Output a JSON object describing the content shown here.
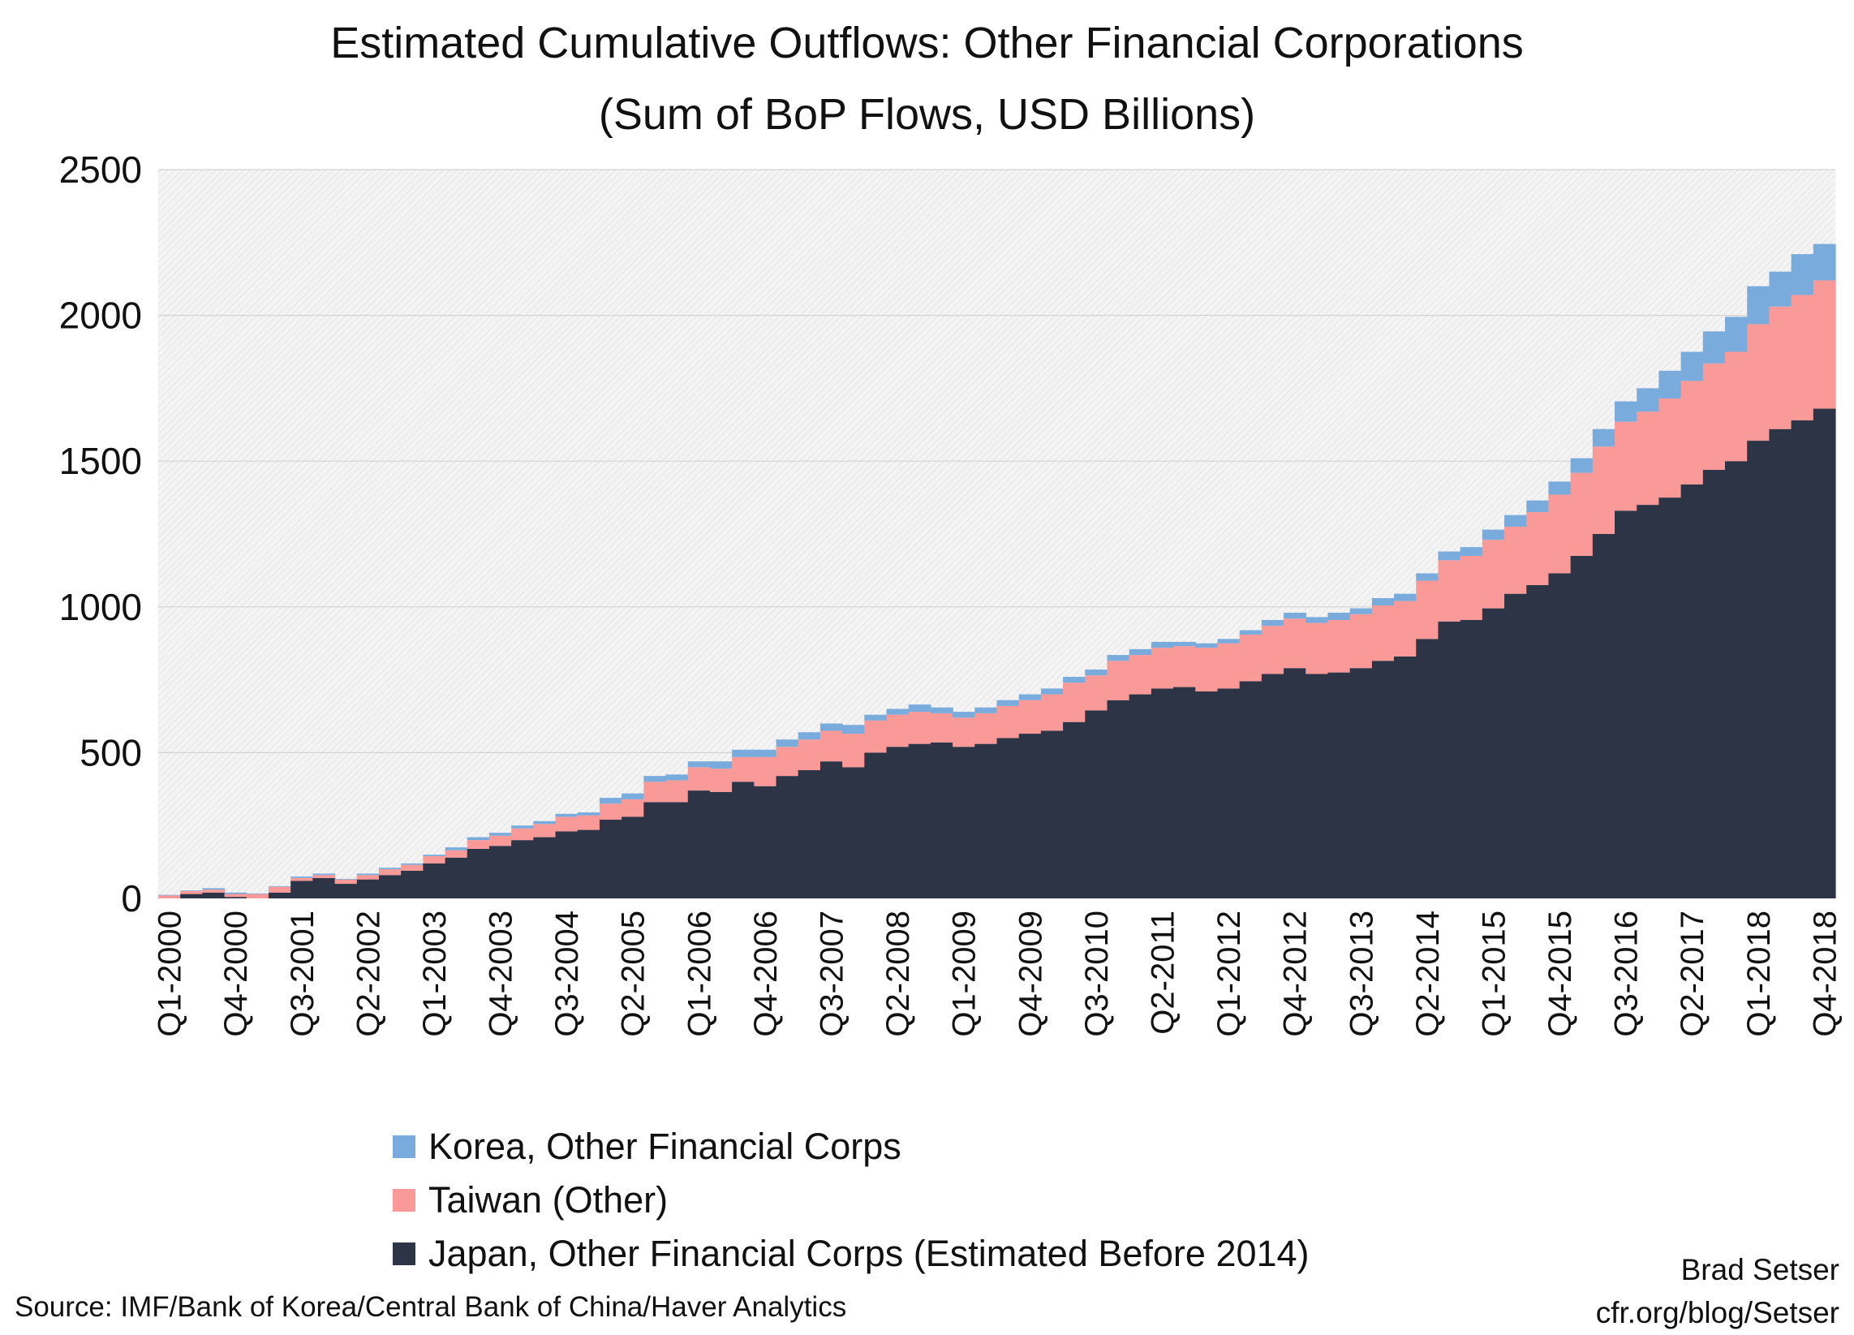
{
  "title_line1": "Estimated Cumulative Outflows: Other Financial Corporations",
  "title_line2": "(Sum of BoP Flows, USD Billions)",
  "source": "Source: IMF/Bank of Korea/Central Bank of China/Haver Analytics",
  "credit_name": "Brad Setser",
  "credit_url": "cfr.org/blog/Setser",
  "colors": {
    "japan": "#2c3446",
    "taiwan": "#f99a98",
    "korea": "#7aabdd",
    "plot_bg": "#f2f2f2",
    "grid": "#d3d3d3"
  },
  "chart_data": {
    "type": "area",
    "stacked": true,
    "ylim": [
      0,
      2500
    ],
    "yticks": [
      0,
      500,
      1000,
      1500,
      2000,
      2500
    ],
    "grid": true,
    "legend_position": "bottom",
    "x_labels_shown": [
      "Q1-2000",
      "Q4-2000",
      "Q3-2001",
      "Q2-2002",
      "Q1-2003",
      "Q4-2003",
      "Q3-2004",
      "Q2-2005",
      "Q1-2006",
      "Q4-2006",
      "Q3-2007",
      "Q2-2008",
      "Q1-2009",
      "Q4-2009",
      "Q3-2010",
      "Q2-2011",
      "Q1-2012",
      "Q4-2012",
      "Q3-2013",
      "Q2-2014",
      "Q1-2015",
      "Q4-2015",
      "Q3-2016",
      "Q2-2017",
      "Q1-2018",
      "Q4-2018"
    ],
    "x": [
      "Q1-2000",
      "Q2-2000",
      "Q3-2000",
      "Q4-2000",
      "Q1-2001",
      "Q2-2001",
      "Q3-2001",
      "Q4-2001",
      "Q1-2002",
      "Q2-2002",
      "Q3-2002",
      "Q4-2002",
      "Q1-2003",
      "Q2-2003",
      "Q3-2003",
      "Q4-2003",
      "Q1-2004",
      "Q2-2004",
      "Q3-2004",
      "Q4-2004",
      "Q1-2005",
      "Q2-2005",
      "Q3-2005",
      "Q4-2005",
      "Q1-2006",
      "Q2-2006",
      "Q3-2006",
      "Q4-2006",
      "Q1-2007",
      "Q2-2007",
      "Q3-2007",
      "Q4-2007",
      "Q1-2008",
      "Q2-2008",
      "Q3-2008",
      "Q4-2008",
      "Q1-2009",
      "Q2-2009",
      "Q3-2009",
      "Q4-2009",
      "Q1-2010",
      "Q2-2010",
      "Q3-2010",
      "Q4-2010",
      "Q1-2011",
      "Q2-2011",
      "Q3-2011",
      "Q4-2011",
      "Q1-2012",
      "Q2-2012",
      "Q3-2012",
      "Q4-2012",
      "Q1-2013",
      "Q2-2013",
      "Q3-2013",
      "Q4-2013",
      "Q1-2014",
      "Q2-2014",
      "Q3-2014",
      "Q4-2014",
      "Q1-2015",
      "Q2-2015",
      "Q3-2015",
      "Q4-2015",
      "Q1-2016",
      "Q2-2016",
      "Q3-2016",
      "Q4-2016",
      "Q1-2017",
      "Q2-2017",
      "Q3-2017",
      "Q4-2017",
      "Q1-2018",
      "Q2-2018",
      "Q3-2018",
      "Q4-2018"
    ],
    "series": [
      {
        "name": "Japan, Other Financial Corps (Estimated Before 2014)",
        "color": "#2c3446",
        "values": [
          0,
          15,
          20,
          5,
          0,
          20,
          60,
          70,
          50,
          65,
          80,
          95,
          120,
          140,
          170,
          180,
          200,
          210,
          230,
          235,
          270,
          280,
          330,
          330,
          370,
          365,
          400,
          385,
          420,
          440,
          470,
          450,
          500,
          520,
          530,
          535,
          520,
          530,
          550,
          565,
          575,
          605,
          645,
          680,
          700,
          720,
          725,
          710,
          720,
          745,
          770,
          790,
          770,
          775,
          790,
          815,
          830,
          890,
          950,
          955,
          995,
          1045,
          1075,
          1115,
          1175,
          1250,
          1330,
          1350,
          1375,
          1420,
          1470,
          1500,
          1570,
          1610,
          1640,
          1680
        ]
      },
      {
        "name": "Taiwan (Other)",
        "color": "#f99a98",
        "values": [
          10,
          10,
          10,
          10,
          15,
          20,
          10,
          10,
          15,
          15,
          20,
          20,
          25,
          25,
          30,
          35,
          40,
          45,
          50,
          50,
          55,
          60,
          70,
          75,
          80,
          80,
          85,
          100,
          100,
          105,
          105,
          115,
          110,
          110,
          110,
          100,
          100,
          105,
          110,
          115,
          125,
          135,
          120,
          135,
          135,
          140,
          140,
          150,
          155,
          160,
          165,
          170,
          175,
          180,
          185,
          190,
          190,
          200,
          210,
          220,
          235,
          230,
          250,
          270,
          285,
          300,
          305,
          320,
          340,
          355,
          365,
          375,
          400,
          420,
          430,
          440
        ]
      },
      {
        "name": "Korea, Other Financial Corps",
        "color": "#7aabdd",
        "values": [
          2,
          2,
          5,
          5,
          2,
          2,
          5,
          5,
          2,
          5,
          5,
          5,
          5,
          10,
          10,
          10,
          10,
          10,
          10,
          10,
          20,
          20,
          20,
          20,
          20,
          25,
          25,
          25,
          25,
          25,
          25,
          30,
          20,
          20,
          25,
          20,
          20,
          20,
          20,
          20,
          20,
          20,
          20,
          20,
          20,
          20,
          15,
          15,
          15,
          15,
          20,
          20,
          20,
          25,
          20,
          25,
          25,
          25,
          30,
          30,
          35,
          40,
          40,
          45,
          50,
          60,
          70,
          80,
          95,
          100,
          110,
          120,
          130,
          120,
          140,
          125
        ]
      }
    ]
  }
}
